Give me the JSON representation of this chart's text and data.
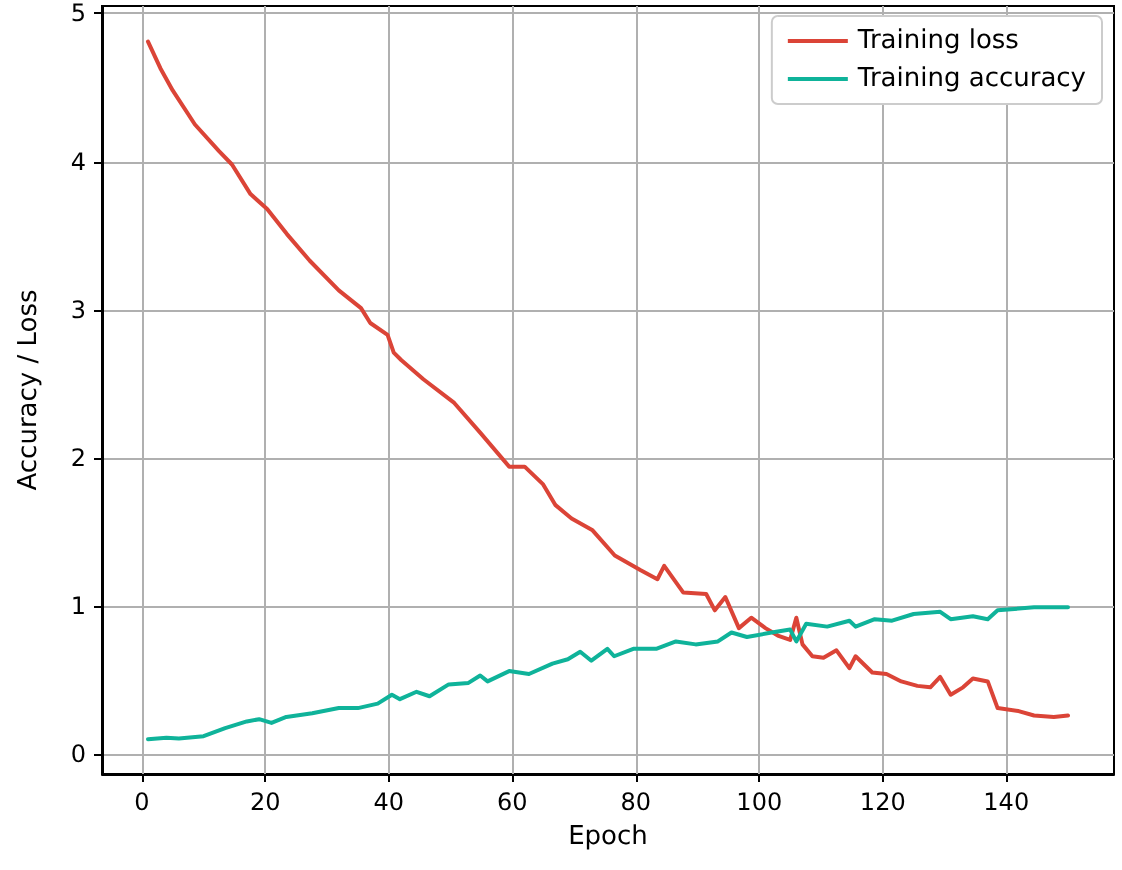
{
  "chart_data": {
    "type": "line",
    "xlabel": "Epoch",
    "ylabel": "Accuracy / Loss",
    "xlim": [
      -6.45,
      157.45
    ],
    "ylim": [
      -0.135,
      5.05
    ],
    "xticks": [
      0,
      20,
      40,
      60,
      80,
      100,
      120,
      140
    ],
    "yticks": [
      0,
      1,
      2,
      3,
      4,
      5
    ],
    "grid": true,
    "legend": "top right",
    "marker": "none",
    "line_style": "solid",
    "series": [
      {
        "name": "Training loss",
        "color": "#db4437",
        "x": [
          1,
          3,
          5,
          8.6,
          12.5,
          14.6,
          17.6,
          20.3,
          23.5,
          27.2,
          31.9,
          35.5,
          37,
          39.8,
          40.8,
          42,
          45.6,
          50.6,
          54.8,
          59.5,
          62,
          65,
          67,
          69.6,
          73,
          76.6,
          80.8,
          83.5,
          84.6,
          87.7,
          91.4,
          92.8,
          94.5,
          96.7,
          98.7,
          101,
          103,
          105,
          106,
          107,
          108.6,
          110.4,
          112.5,
          114.6,
          115.6,
          118.3,
          120.6,
          123,
          125.6,
          127.7,
          129.3,
          131,
          133,
          134.6,
          137,
          138.6,
          142,
          144.5,
          147.7,
          150
        ],
        "values": [
          4.81,
          4.63,
          4.48,
          4.25,
          4.07,
          3.98,
          3.78,
          3.68,
          3.51,
          3.33,
          3.13,
          3.01,
          2.91,
          2.83,
          2.71,
          2.66,
          2.53,
          2.37,
          2.17,
          1.94,
          1.94,
          1.82,
          1.68,
          1.59,
          1.51,
          1.34,
          1.24,
          1.18,
          1.27,
          1.09,
          1.08,
          0.97,
          1.06,
          0.85,
          0.92,
          0.85,
          0.8,
          0.77,
          0.92,
          0.74,
          0.66,
          0.65,
          0.7,
          0.58,
          0.66,
          0.55,
          0.54,
          0.49,
          0.46,
          0.45,
          0.52,
          0.4,
          0.45,
          0.51,
          0.49,
          0.31,
          0.29,
          0.26,
          0.25,
          0.26
        ]
      },
      {
        "name": "Training accuracy",
        "color": "#0fb39a",
        "x": [
          1,
          4,
          6,
          10,
          13.5,
          17,
          19,
          21,
          23.4,
          27.6,
          31.9,
          35,
          38.2,
          40.5,
          41.8,
          44.5,
          46.6,
          49.7,
          52.9,
          54.8,
          56,
          59.5,
          62.7,
          66.5,
          69,
          71,
          72.8,
          75.4,
          76.5,
          79.6,
          83.3,
          86.5,
          89.7,
          93.3,
          95.5,
          98,
          102,
          105,
          106,
          107.6,
          111,
          114.6,
          115.6,
          118.7,
          121.5,
          125,
          129.3,
          131,
          134.6,
          137,
          138.6,
          144.5,
          150
        ],
        "values": [
          0.1,
          0.11,
          0.105,
          0.12,
          0.175,
          0.22,
          0.235,
          0.21,
          0.25,
          0.275,
          0.31,
          0.31,
          0.34,
          0.4,
          0.37,
          0.42,
          0.39,
          0.47,
          0.48,
          0.53,
          0.49,
          0.56,
          0.54,
          0.61,
          0.64,
          0.69,
          0.63,
          0.71,
          0.66,
          0.71,
          0.71,
          0.76,
          0.74,
          0.76,
          0.82,
          0.79,
          0.82,
          0.84,
          0.76,
          0.88,
          0.86,
          0.9,
          0.86,
          0.91,
          0.9,
          0.945,
          0.96,
          0.91,
          0.93,
          0.91,
          0.97,
          0.99,
          0.99
        ]
      }
    ]
  }
}
